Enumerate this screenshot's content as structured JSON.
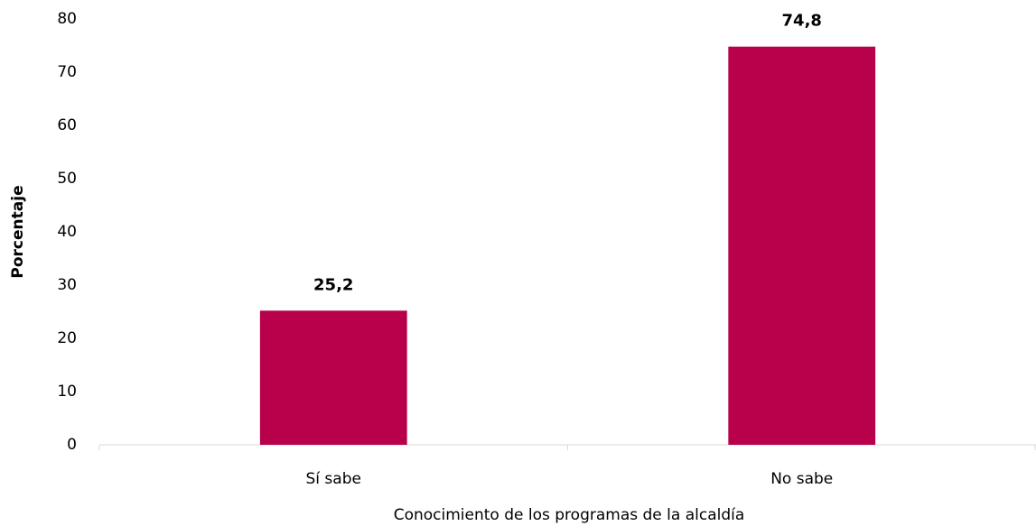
{
  "chart_data": {
    "type": "bar",
    "x_label": "Conocimiento de los programas de la alcaldía",
    "y_label": "Porcentaje",
    "categories": [
      "Sí sabe",
      "No sabe"
    ],
    "values": [
      25.2,
      74.8
    ],
    "value_labels": [
      "25,2",
      "74,8"
    ],
    "color": "#b8004b",
    "ylim": [
      0,
      80
    ],
    "yticks": [
      0,
      10,
      20,
      30,
      40,
      50,
      60,
      70,
      80
    ],
    "grid": false
  }
}
